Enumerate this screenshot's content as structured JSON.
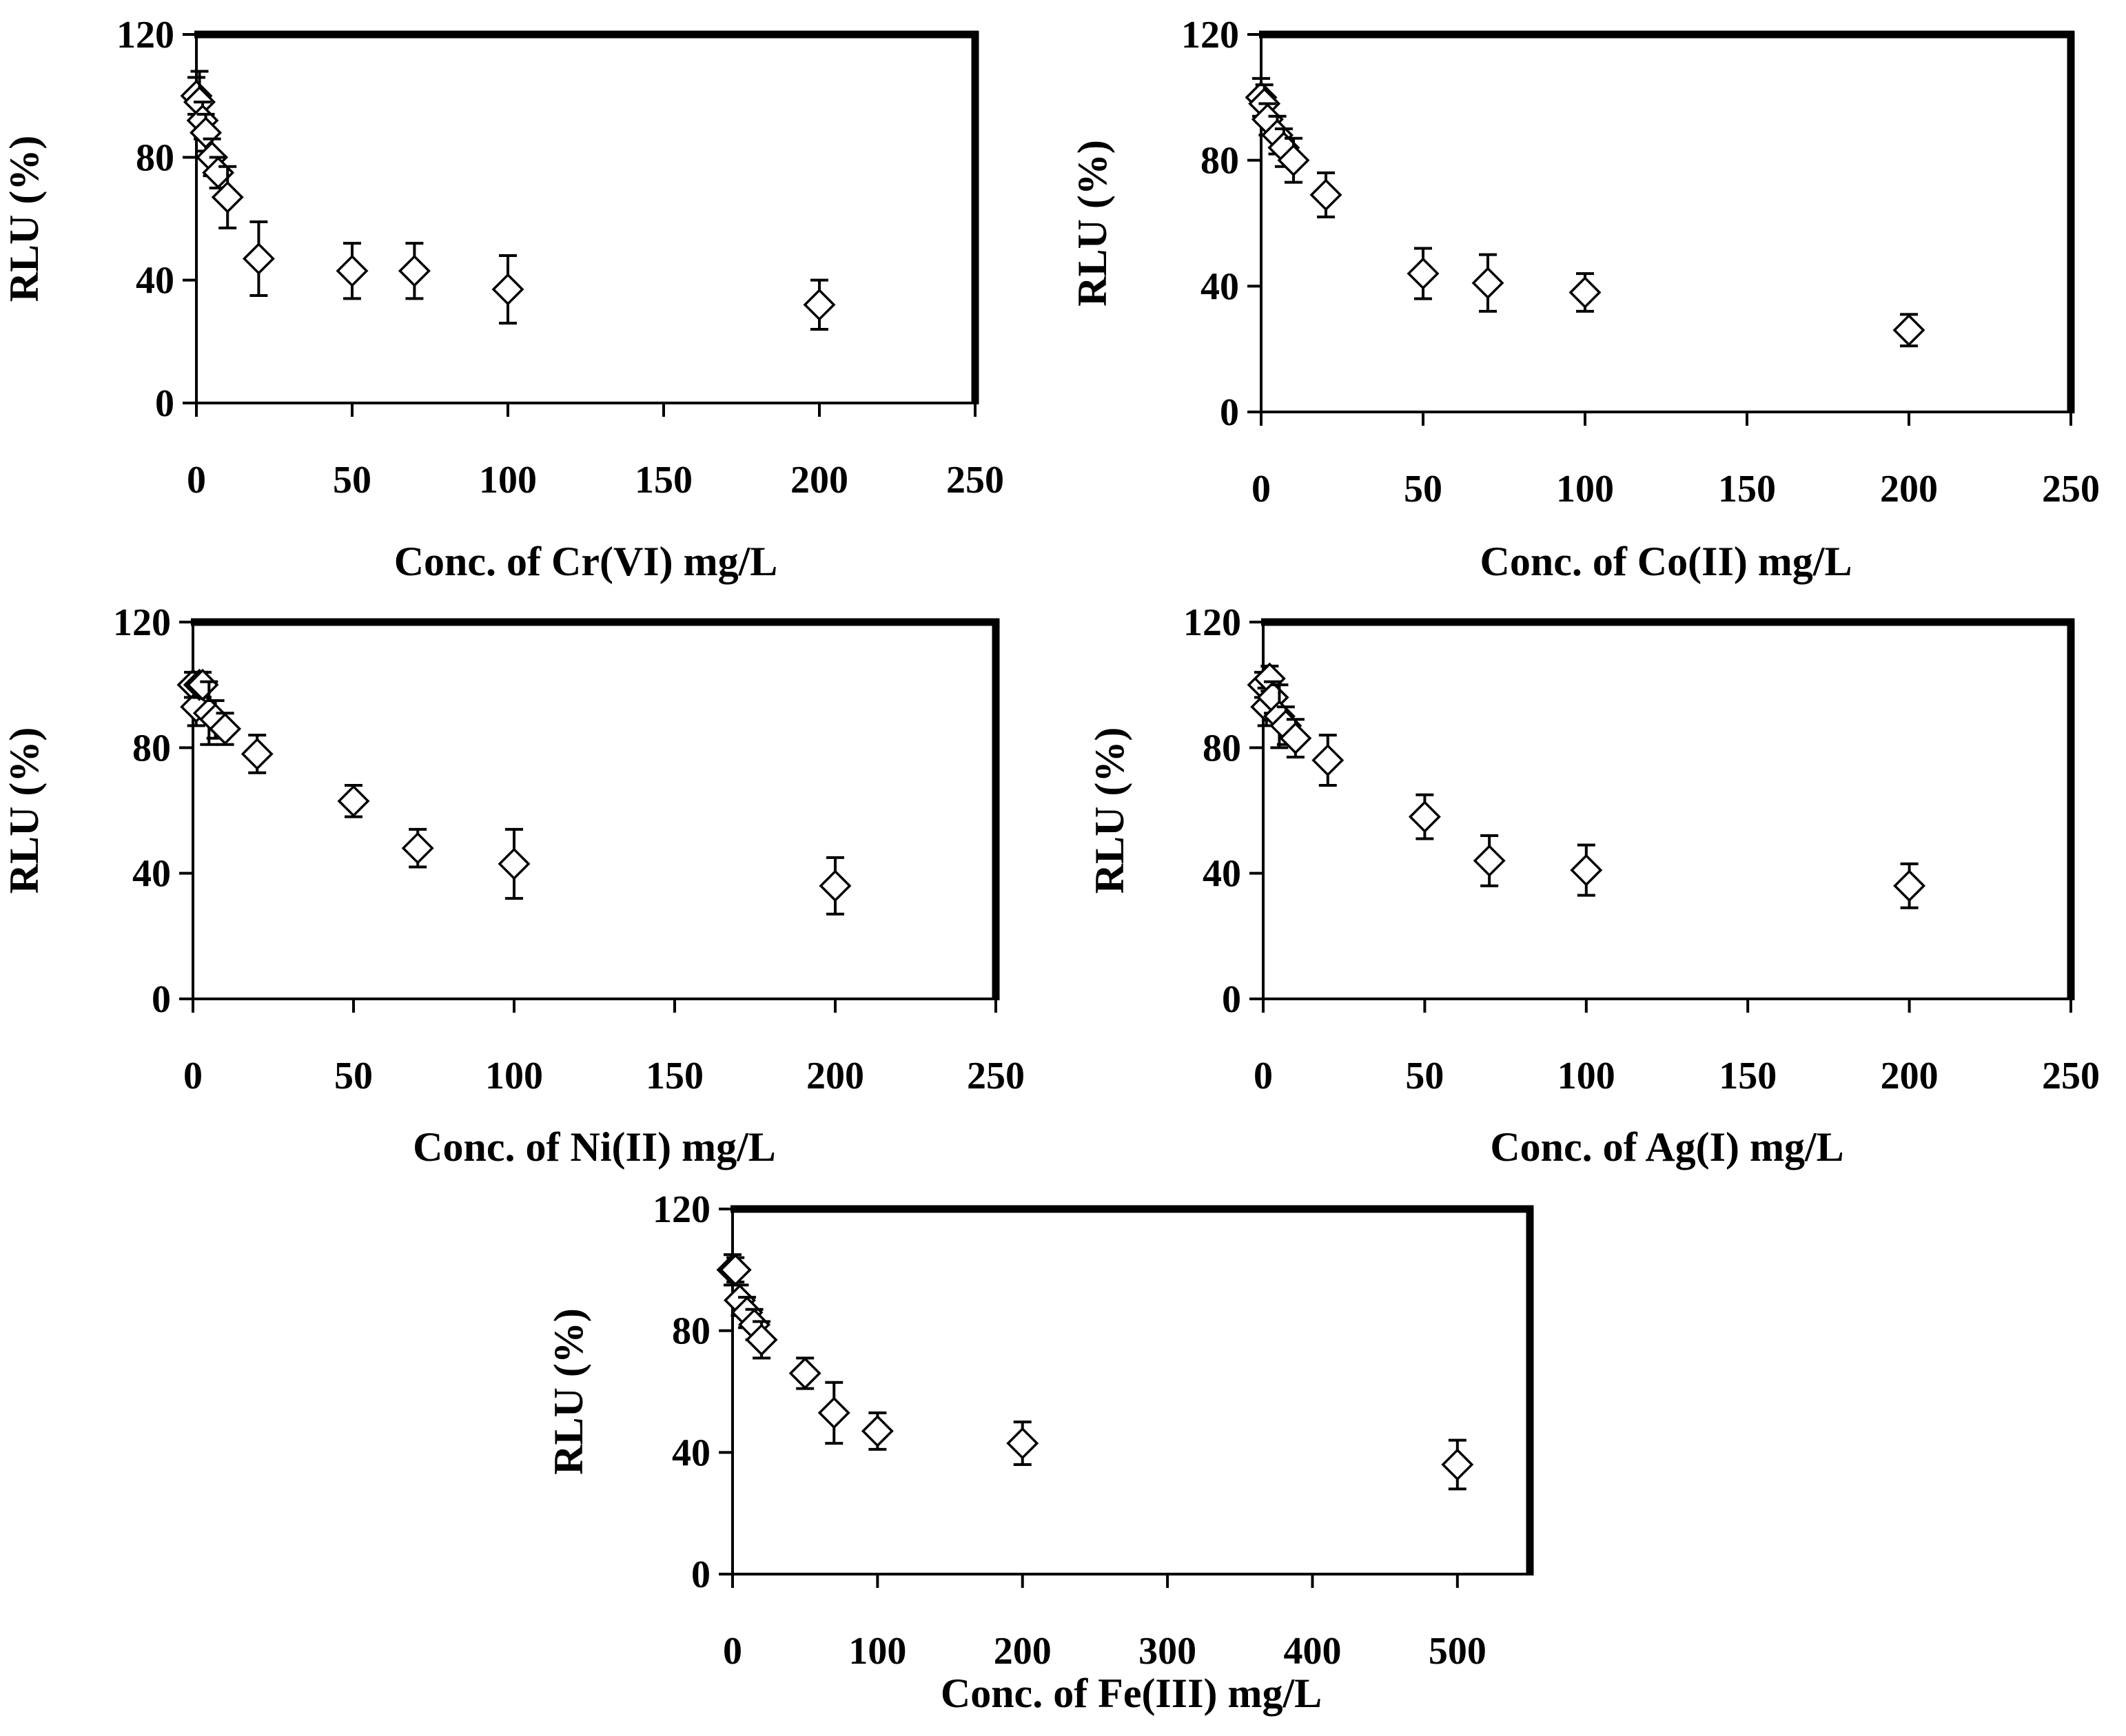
{
  "chart_data": [
    {
      "type": "scatter",
      "title": "",
      "xlabel": "Conc. of Cr(VI) mg/L",
      "ylabel": "RLU (%)",
      "xlim": [
        0,
        250
      ],
      "ylim": [
        0,
        120
      ],
      "xticks": [
        0,
        50,
        100,
        150,
        200,
        250
      ],
      "yticks": [
        0,
        40,
        80,
        120
      ],
      "grid": false,
      "marker": "open-diamond",
      "points": [
        {
          "x": 0,
          "y": 100,
          "err": 6
        },
        {
          "x": 1,
          "y": 98,
          "err": 10
        },
        {
          "x": 2,
          "y": 92,
          "err": 6
        },
        {
          "x": 3,
          "y": 88,
          "err": 6
        },
        {
          "x": 5,
          "y": 80,
          "err": 6
        },
        {
          "x": 7,
          "y": 75,
          "err": 5
        },
        {
          "x": 10,
          "y": 67,
          "err": 10
        },
        {
          "x": 20,
          "y": 47,
          "err": 12
        },
        {
          "x": 50,
          "y": 43,
          "err": 9
        },
        {
          "x": 70,
          "y": 43,
          "err": 9
        },
        {
          "x": 100,
          "y": 37,
          "err": 11
        },
        {
          "x": 200,
          "y": 32,
          "err": 8
        }
      ]
    },
    {
      "type": "scatter",
      "title": "",
      "xlabel": "Conc. of Co(II) mg/L",
      "ylabel": "RLU (%)",
      "xlim": [
        0,
        250
      ],
      "ylim": [
        0,
        120
      ],
      "xticks": [
        0,
        50,
        100,
        150,
        200,
        250
      ],
      "yticks": [
        0,
        40,
        80,
        120
      ],
      "grid": false,
      "marker": "open-diamond",
      "points": [
        {
          "x": 0,
          "y": 100,
          "err": 6
        },
        {
          "x": 1,
          "y": 98,
          "err": 6
        },
        {
          "x": 2,
          "y": 93,
          "err": 5
        },
        {
          "x": 5,
          "y": 88,
          "err": 6
        },
        {
          "x": 7,
          "y": 84,
          "err": 6
        },
        {
          "x": 10,
          "y": 80,
          "err": 7
        },
        {
          "x": 20,
          "y": 69,
          "err": 7
        },
        {
          "x": 50,
          "y": 44,
          "err": 8
        },
        {
          "x": 70,
          "y": 41,
          "err": 9
        },
        {
          "x": 100,
          "y": 38,
          "err": 6
        },
        {
          "x": 200,
          "y": 26,
          "err": 5
        }
      ]
    },
    {
      "type": "scatter",
      "title": "",
      "xlabel": "Conc. of  Ni(II) mg/L",
      "ylabel": "RLU (%)",
      "xlim": [
        0,
        250
      ],
      "ylim": [
        0,
        120
      ],
      "xticks": [
        0,
        50,
        100,
        150,
        200,
        250
      ],
      "yticks": [
        0,
        40,
        80,
        120
      ],
      "grid": false,
      "marker": "open-diamond",
      "points": [
        {
          "x": 0,
          "y": 100,
          "err": 4
        },
        {
          "x": 1,
          "y": 93,
          "err": 6
        },
        {
          "x": 2,
          "y": 100,
          "err": 4
        },
        {
          "x": 3,
          "y": 100,
          "err": 4
        },
        {
          "x": 5,
          "y": 91,
          "err": 10
        },
        {
          "x": 7,
          "y": 89,
          "err": 6
        },
        {
          "x": 10,
          "y": 86,
          "err": 5
        },
        {
          "x": 20,
          "y": 78,
          "err": 6
        },
        {
          "x": 50,
          "y": 63,
          "err": 5
        },
        {
          "x": 70,
          "y": 48,
          "err": 6
        },
        {
          "x": 100,
          "y": 43,
          "err": 11
        },
        {
          "x": 200,
          "y": 36,
          "err": 9
        }
      ]
    },
    {
      "type": "scatter",
      "title": "",
      "xlabel": "Conc. of  Ag(I) mg/L",
      "ylabel": "RLU (%)",
      "xlim": [
        0,
        250
      ],
      "ylim": [
        0,
        120
      ],
      "xticks": [
        0,
        50,
        100,
        150,
        200,
        250
      ],
      "yticks": [
        0,
        40,
        80,
        120
      ],
      "grid": false,
      "marker": "open-diamond",
      "points": [
        {
          "x": 0,
          "y": 100,
          "err": 4
        },
        {
          "x": 1,
          "y": 93,
          "err": 6
        },
        {
          "x": 2,
          "y": 102,
          "err": 4
        },
        {
          "x": 3,
          "y": 96,
          "err": 5
        },
        {
          "x": 5,
          "y": 90,
          "err": 10
        },
        {
          "x": 7,
          "y": 87,
          "err": 6
        },
        {
          "x": 10,
          "y": 83,
          "err": 6
        },
        {
          "x": 20,
          "y": 76,
          "err": 8
        },
        {
          "x": 50,
          "y": 58,
          "err": 7
        },
        {
          "x": 70,
          "y": 44,
          "err": 8
        },
        {
          "x": 100,
          "y": 41,
          "err": 8
        },
        {
          "x": 200,
          "y": 36,
          "err": 7
        }
      ]
    },
    {
      "type": "scatter",
      "title": "",
      "xlabel": "Conc. of  Fe(III) mg/L",
      "ylabel": "RLU (%)",
      "xlim": [
        0,
        550
      ],
      "ylim": [
        0,
        120
      ],
      "xticks": [
        0,
        100,
        200,
        300,
        400,
        500
      ],
      "yticks": [
        0,
        40,
        80,
        120
      ],
      "grid": false,
      "marker": "open-diamond",
      "points": [
        {
          "x": 0,
          "y": 100,
          "err": 5
        },
        {
          "x": 2,
          "y": 100,
          "err": 4
        },
        {
          "x": 5,
          "y": 90,
          "err": 5
        },
        {
          "x": 10,
          "y": 86,
          "err": 5
        },
        {
          "x": 15,
          "y": 82,
          "err": 5
        },
        {
          "x": 20,
          "y": 77,
          "err": 6
        },
        {
          "x": 50,
          "y": 66,
          "err": 5
        },
        {
          "x": 70,
          "y": 53,
          "err": 10
        },
        {
          "x": 100,
          "y": 47,
          "err": 6
        },
        {
          "x": 200,
          "y": 43,
          "err": 7
        },
        {
          "x": 500,
          "y": 36,
          "err": 8
        }
      ]
    }
  ]
}
